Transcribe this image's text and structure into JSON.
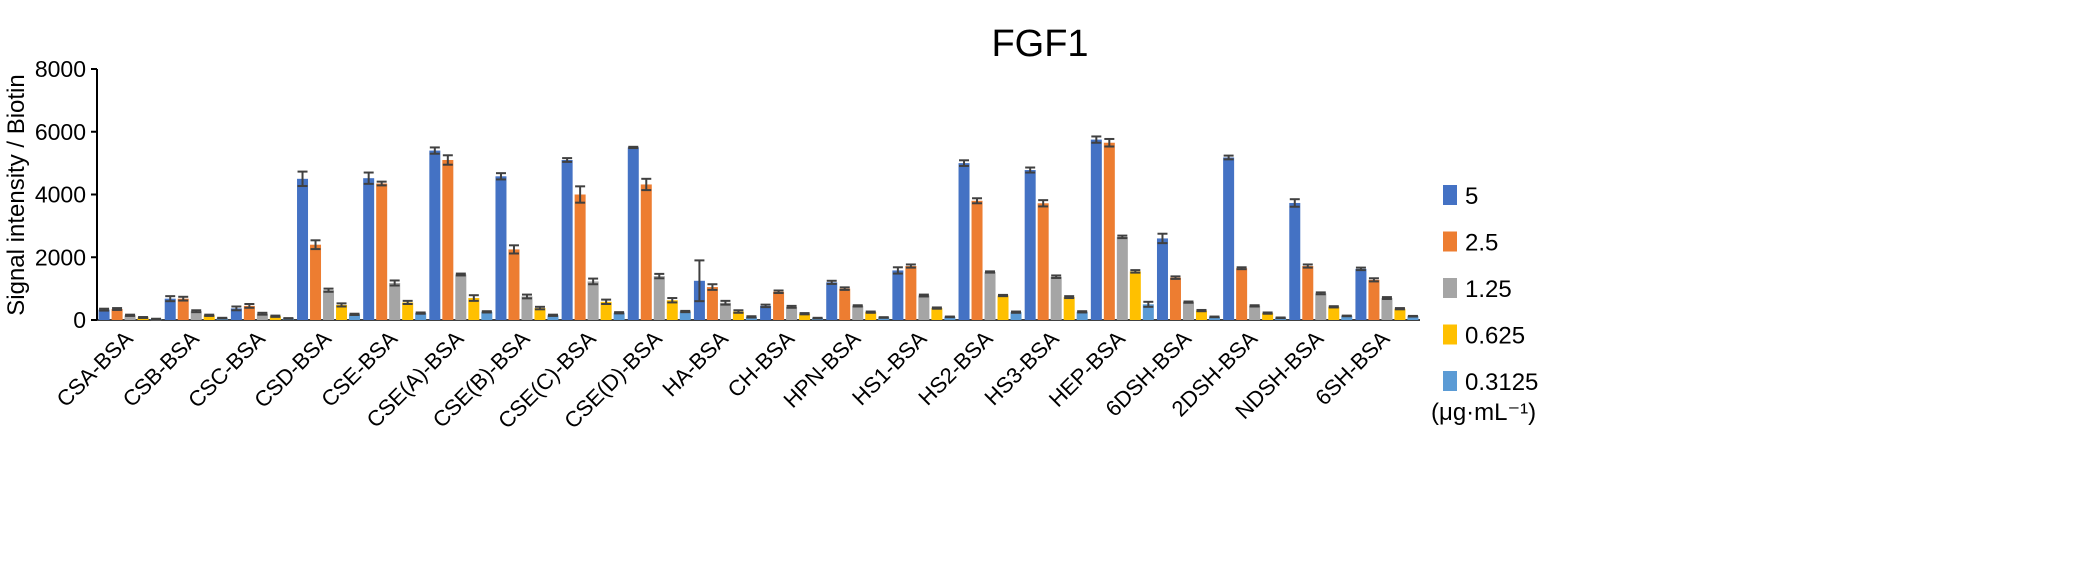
{
  "chart_data": {
    "type": "bar",
    "title": "FGF1",
    "xlabel": "",
    "ylabel": "Signal intensity / Biotin",
    "ylim": [
      0,
      8000
    ],
    "yticks": [
      "0",
      "2000",
      "4000",
      "6000",
      "8000"
    ],
    "grid": false,
    "legend_position": "right",
    "legend_unit": "(μg·mL⁻¹)",
    "categories": [
      "CSA-BSA",
      "CSB-BSA",
      "CSC-BSA",
      "CSD-BSA",
      "CSE-BSA",
      "CSE(A)-BSA",
      "CSE(B)-BSA",
      "CSE(C)-BSA",
      "CSE(D)-BSA",
      "HA-BSA",
      "CH-BSA",
      "HPN-BSA",
      "HS1-BSA",
      "HS2-BSA",
      "HS3-BSA",
      "HEP-BSA",
      "6DSH-BSA",
      "2DSH-BSA",
      "NDSH-BSA",
      "6SH-BSA"
    ],
    "series": [
      {
        "name": "5",
        "color": "#4472C4",
        "values": [
          330,
          680,
          370,
          4500,
          4520,
          5400,
          4580,
          5100,
          5500,
          1250,
          450,
          1200,
          1580,
          5000,
          4780,
          5750,
          2600,
          5180,
          3730,
          1630
        ],
        "errors": [
          30,
          80,
          60,
          230,
          180,
          100,
          100,
          60,
          20,
          650,
          40,
          50,
          100,
          90,
          80,
          100,
          150,
          60,
          120,
          40
        ]
      },
      {
        "name": "2.5",
        "color": "#ED7D31",
        "values": [
          350,
          680,
          450,
          2400,
          4350,
          5100,
          2250,
          4000,
          4320,
          1050,
          900,
          1000,
          1720,
          3800,
          3720,
          5650,
          1350,
          1650,
          1720,
          1280
        ],
        "errors": [
          30,
          60,
          60,
          140,
          60,
          150,
          130,
          260,
          180,
          90,
          40,
          40,
          50,
          80,
          100,
          120,
          40,
          30,
          50,
          50
        ]
      },
      {
        "name": "1.25",
        "color": "#A5A5A5",
        "values": [
          150,
          280,
          200,
          950,
          1180,
          1450,
          750,
          1230,
          1400,
          550,
          420,
          450,
          780,
          1530,
          1380,
          2650,
          570,
          450,
          850,
          700
        ],
        "errors": [
          20,
          30,
          30,
          50,
          80,
          30,
          60,
          90,
          70,
          60,
          30,
          20,
          30,
          20,
          40,
          40,
          20,
          20,
          30,
          30
        ]
      },
      {
        "name": "0.625",
        "color": "#FFC000",
        "values": [
          80,
          150,
          120,
          480,
          560,
          700,
          380,
          580,
          630,
          270,
          200,
          250,
          380,
          780,
          730,
          1550,
          300,
          220,
          420,
          360
        ],
        "errors": [
          15,
          20,
          20,
          50,
          50,
          90,
          40,
          70,
          70,
          40,
          20,
          20,
          20,
          20,
          30,
          40,
          20,
          20,
          20,
          20
        ]
      },
      {
        "name": "0.3125",
        "color": "#5B9BD5",
        "values": [
          30,
          60,
          50,
          180,
          220,
          260,
          150,
          230,
          270,
          100,
          60,
          80,
          100,
          250,
          260,
          500,
          100,
          70,
          130,
          120
        ],
        "errors": [
          10,
          10,
          10,
          20,
          20,
          20,
          20,
          20,
          20,
          20,
          10,
          10,
          10,
          20,
          20,
          80,
          10,
          10,
          10,
          10
        ]
      }
    ]
  }
}
